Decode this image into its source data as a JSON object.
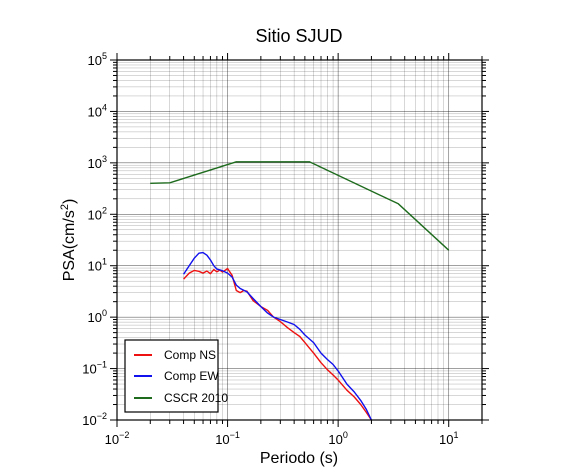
{
  "chart_data": {
    "type": "line",
    "title": "Sitio SJUD",
    "xlabel": "Periodo (s)",
    "ylabel_main": "PSA(cm/s",
    "ylabel_sup": "2",
    "ylabel_end": ")",
    "x_scale": "log",
    "y_scale": "log",
    "xlim": [
      0.01,
      20
    ],
    "ylim": [
      0.01,
      100000
    ],
    "grid": true,
    "legend_position": "bottom-left",
    "x_ticks": [
      {
        "value": 0.01,
        "base": "10",
        "exp": "−2"
      },
      {
        "value": 0.1,
        "base": "10",
        "exp": "−1"
      },
      {
        "value": 1,
        "base": "10",
        "exp": "0"
      },
      {
        "value": 10,
        "base": "10",
        "exp": "1"
      }
    ],
    "y_ticks": [
      {
        "value": 0.01,
        "base": "10",
        "exp": "−2"
      },
      {
        "value": 0.1,
        "base": "10",
        "exp": "−1"
      },
      {
        "value": 1,
        "base": "10",
        "exp": "0"
      },
      {
        "value": 10,
        "base": "10",
        "exp": "1"
      },
      {
        "value": 100,
        "base": "10",
        "exp": "2"
      },
      {
        "value": 1000,
        "base": "10",
        "exp": "3"
      },
      {
        "value": 10000,
        "base": "10",
        "exp": "4"
      },
      {
        "value": 100000,
        "base": "10",
        "exp": "5"
      }
    ],
    "series": [
      {
        "name": "Comp NS",
        "color": "#ee1111",
        "points": [
          [
            0.04,
            5.5
          ],
          [
            0.045,
            7.2
          ],
          [
            0.05,
            8.1
          ],
          [
            0.055,
            7.8
          ],
          [
            0.06,
            7.2
          ],
          [
            0.065,
            7.9
          ],
          [
            0.07,
            7.0
          ],
          [
            0.075,
            8.4
          ],
          [
            0.08,
            7.6
          ],
          [
            0.085,
            8.2
          ],
          [
            0.09,
            7.5
          ],
          [
            0.1,
            8.8
          ],
          [
            0.11,
            6.5
          ],
          [
            0.12,
            3.3
          ],
          [
            0.13,
            3.0
          ],
          [
            0.14,
            3.3
          ],
          [
            0.15,
            3.2
          ],
          [
            0.17,
            2.1
          ],
          [
            0.2,
            1.6
          ],
          [
            0.23,
            1.35
          ],
          [
            0.26,
            1.0
          ],
          [
            0.3,
            0.82
          ],
          [
            0.35,
            0.62
          ],
          [
            0.4,
            0.5
          ],
          [
            0.45,
            0.42
          ],
          [
            0.5,
            0.32
          ],
          [
            0.55,
            0.25
          ],
          [
            0.6,
            0.2
          ],
          [
            0.7,
            0.13
          ],
          [
            0.8,
            0.095
          ],
          [
            0.9,
            0.075
          ],
          [
            1.0,
            0.06
          ],
          [
            1.2,
            0.038
          ],
          [
            1.4,
            0.028
          ],
          [
            1.6,
            0.02
          ],
          [
            1.8,
            0.014
          ],
          [
            2.0,
            0.01
          ]
        ]
      },
      {
        "name": "Comp EW",
        "color": "#1111ee",
        "points": [
          [
            0.04,
            6.8
          ],
          [
            0.045,
            10
          ],
          [
            0.05,
            14
          ],
          [
            0.055,
            17.5
          ],
          [
            0.06,
            18
          ],
          [
            0.065,
            16
          ],
          [
            0.07,
            13
          ],
          [
            0.075,
            10
          ],
          [
            0.08,
            8.6
          ],
          [
            0.09,
            8.0
          ],
          [
            0.1,
            7.2
          ],
          [
            0.11,
            6.0
          ],
          [
            0.12,
            4.2
          ],
          [
            0.13,
            3.6
          ],
          [
            0.15,
            3.1
          ],
          [
            0.17,
            2.3
          ],
          [
            0.2,
            1.6
          ],
          [
            0.23,
            1.2
          ],
          [
            0.26,
            1.0
          ],
          [
            0.3,
            0.9
          ],
          [
            0.35,
            0.8
          ],
          [
            0.4,
            0.72
          ],
          [
            0.45,
            0.58
          ],
          [
            0.5,
            0.45
          ],
          [
            0.6,
            0.32
          ],
          [
            0.7,
            0.2
          ],
          [
            0.8,
            0.15
          ],
          [
            0.9,
            0.12
          ],
          [
            1.0,
            0.09
          ],
          [
            1.2,
            0.05
          ],
          [
            1.4,
            0.035
          ],
          [
            1.6,
            0.024
          ],
          [
            1.8,
            0.016
          ],
          [
            2.0,
            0.01
          ]
        ]
      },
      {
        "name": "CSCR 2010",
        "color": "#1e6b1e",
        "points": [
          [
            0.02,
            400
          ],
          [
            0.03,
            410
          ],
          [
            0.12,
            1050
          ],
          [
            0.55,
            1050
          ],
          [
            3.5,
            160
          ],
          [
            10,
            20
          ]
        ]
      }
    ]
  }
}
